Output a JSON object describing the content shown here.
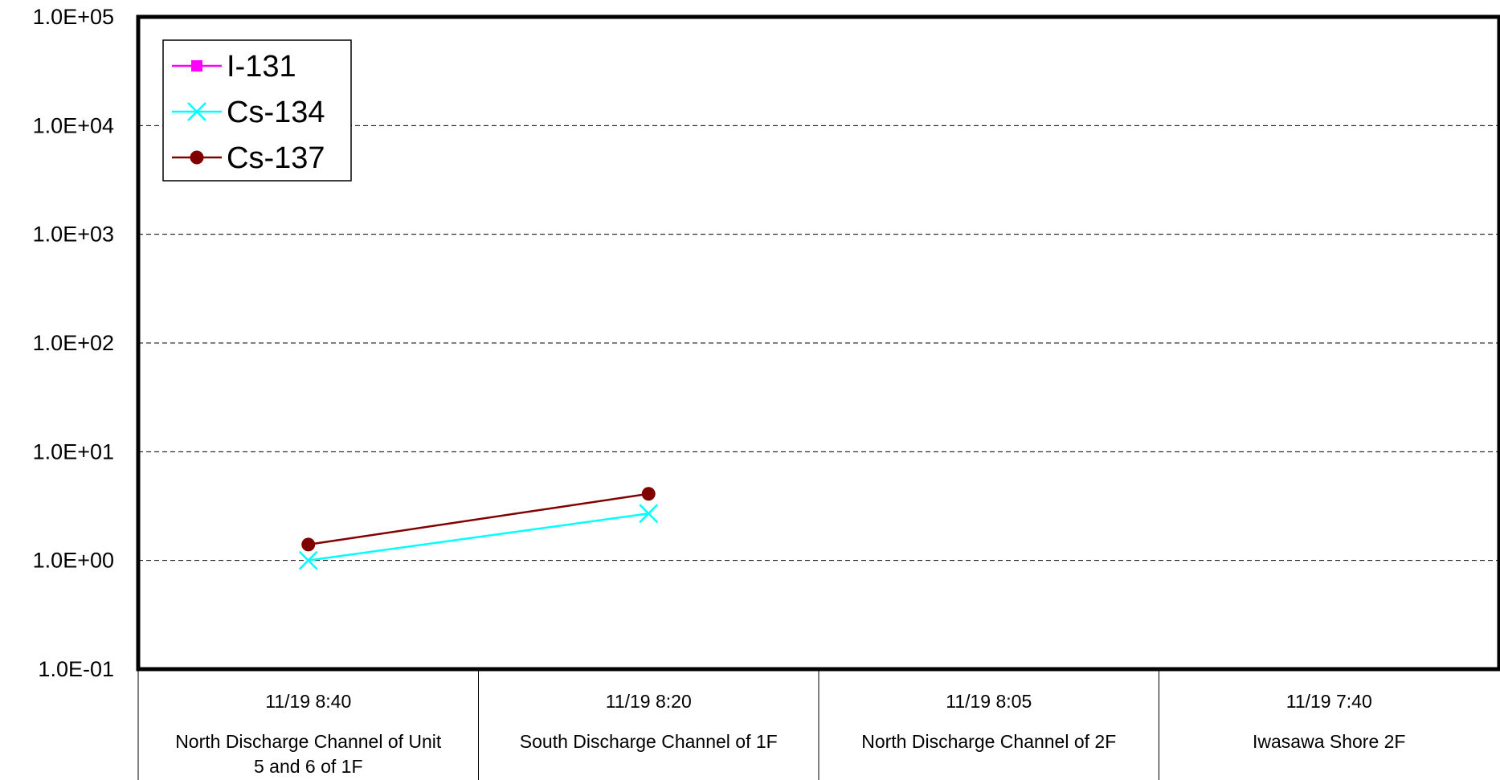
{
  "chart_data": {
    "type": "line",
    "y_scale": "log",
    "ylim": [
      0.1,
      100000
    ],
    "y_tick_labels": [
      "1.0E-01",
      "1.0E+00",
      "1.0E+01",
      "1.0E+02",
      "1.0E+03",
      "1.0E+04",
      "1.0E+05"
    ],
    "grid": "horizontal dashed",
    "legend_position": "top-left",
    "categories": [
      {
        "time": "11/19 8:40",
        "location": [
          "North Discharge Channel of Unit",
          "5 and 6 of 1F"
        ]
      },
      {
        "time": "11/19 8:20",
        "location": [
          "South Discharge Channel of 1F"
        ]
      },
      {
        "time": "11/19 8:05",
        "location": [
          "North Discharge Channel of 2F"
        ]
      },
      {
        "time": "11/19 7:40",
        "location": [
          "Iwasawa Shore 2F"
        ]
      }
    ],
    "series": [
      {
        "name": "I-131",
        "color": "#ff00ff",
        "marker": "square",
        "values": [
          null,
          null,
          null,
          null
        ]
      },
      {
        "name": "Cs-134",
        "color": "#00ffff",
        "marker": "x",
        "values": [
          1.0,
          2.7,
          null,
          null
        ]
      },
      {
        "name": "Cs-137",
        "color": "#800000",
        "marker": "circle",
        "values": [
          1.4,
          4.1,
          null,
          null
        ]
      }
    ]
  }
}
